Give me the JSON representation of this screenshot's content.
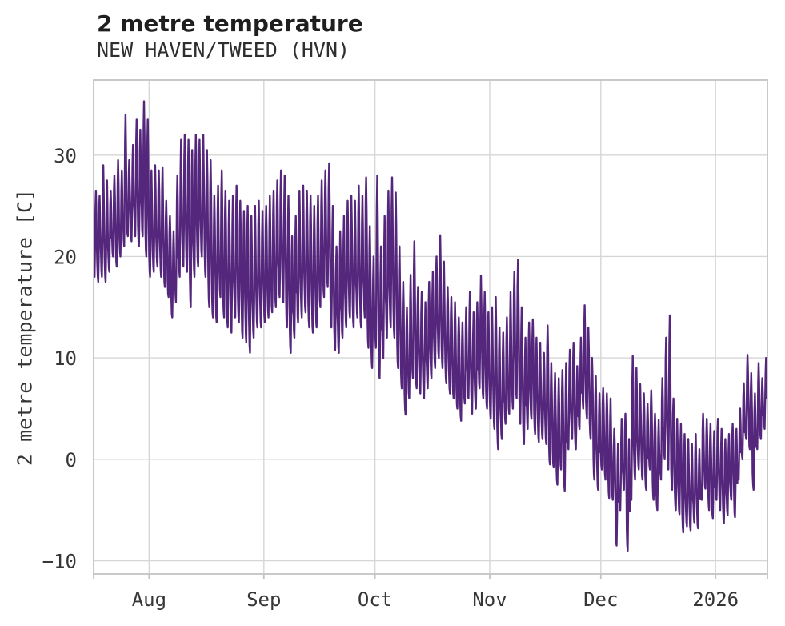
{
  "header": {
    "title": "2 metre temperature",
    "subtitle": "NEW HAVEN/TWEED (HVN)"
  },
  "chart_data": {
    "type": "line",
    "title": "2 metre temperature",
    "subtitle": "NEW HAVEN/TWEED (HVN)",
    "xlabel": "",
    "ylabel": "2 metre temperature [C]",
    "grid": true,
    "legend": "none",
    "line_color": "#54267c",
    "colors": {
      "grid": "#d6d6d6",
      "spine": "#c3c3c3",
      "tick_text": "#363636",
      "title_text": "#1f1f1f"
    },
    "x_start_date": "2025-07-17",
    "xlim_days": [
      0,
      182
    ],
    "ylim": [
      -11.3,
      37.4
    ],
    "x_ticks": [
      {
        "label": "Aug",
        "day": 15
      },
      {
        "label": "Sep",
        "day": 46
      },
      {
        "label": "Oct",
        "day": 76
      },
      {
        "label": "Nov",
        "day": 107
      },
      {
        "label": "Dec",
        "day": 137
      },
      {
        "label": "2026",
        "day": 168
      }
    ],
    "edge_tick_days": [
      0,
      182
    ],
    "y_ticks": [
      {
        "label": "30",
        "value": 30
      },
      {
        "label": "20",
        "value": 20
      },
      {
        "label": "10",
        "value": 10
      },
      {
        "label": "0",
        "value": 0
      },
      {
        "label": "−10",
        "value": -10
      }
    ],
    "sampling_note": "daily min/max envelope of the 2 m temperature trace, read from the plot",
    "daily_min": [
      18,
      17.5,
      18,
      17.5,
      18.5,
      20,
      19,
      20,
      21,
      22,
      21.5,
      22,
      21,
      22,
      20,
      18,
      18.5,
      19,
      18,
      17,
      16,
      14,
      15.5,
      18,
      19,
      18.5,
      15,
      18,
      19,
      20,
      18,
      15,
      14,
      13.5,
      16,
      14,
      13,
      12.5,
      14,
      13.5,
      12,
      11.5,
      10.5,
      12,
      13,
      13,
      13.5,
      14,
      14.5,
      15,
      16,
      15.5,
      13,
      10.5,
      12,
      13.5,
      14,
      14.5,
      13,
      12.5,
      13,
      15,
      16,
      17,
      13,
      10.8,
      10.5,
      12,
      13,
      14,
      13,
      14,
      13,
      14,
      11,
      9,
      11,
      8,
      10,
      12,
      13,
      12,
      9,
      7,
      4.4,
      6,
      8,
      7,
      6.5,
      6,
      7,
      8,
      9,
      10,
      9,
      7.5,
      6.5,
      6,
      5,
      3.8,
      5.5,
      6,
      4.5,
      5,
      7,
      6,
      5,
      4,
      3,
      1,
      2,
      3.5,
      4.5,
      5,
      6,
      3.5,
      1.5,
      3,
      4,
      2.5,
      1.7,
      2,
      1.5,
      -0.5,
      -0.8,
      -2.5,
      -1,
      -3.1,
      1,
      2,
      1,
      3,
      5,
      4,
      2,
      -2,
      -3,
      -1,
      -2,
      -3.8,
      -4,
      -8.5,
      -5,
      -3,
      -9,
      -4,
      -2,
      -1,
      -2,
      -3,
      -1,
      -4,
      -5,
      -2,
      0,
      -1,
      -3,
      -5,
      -5.4,
      -7.2,
      -6.6,
      -7,
      -6.2,
      -6.8,
      -4,
      -2.9,
      -5,
      -5.8,
      -4,
      -5,
      -6.3,
      -5.5,
      -4,
      -5.7,
      -2,
      0,
      2,
      1,
      -3,
      1,
      2,
      3
    ],
    "daily_max": [
      26.5,
      26,
      29,
      27.5,
      26.5,
      28,
      29.5,
      28.5,
      34,
      29.5,
      31,
      33.5,
      32.5,
      35.3,
      33.5,
      28.5,
      29,
      28.5,
      28.8,
      25.5,
      24,
      22.5,
      28,
      31.5,
      32,
      31.5,
      30.5,
      32,
      31.5,
      32,
      30.5,
      29.5,
      26,
      27,
      28.5,
      26.5,
      25.5,
      26,
      27,
      25.5,
      24.5,
      25,
      24,
      25,
      25.5,
      24.5,
      25,
      26,
      26.5,
      27.5,
      28.5,
      28,
      26,
      22,
      24,
      26.5,
      27,
      26.5,
      26,
      25,
      26,
      27.5,
      28.5,
      29.2,
      25,
      21,
      22.5,
      24,
      25.5,
      26,
      25.5,
      27,
      26,
      27.8,
      23,
      20,
      28,
      21,
      24,
      26.5,
      27.8,
      26.3,
      21,
      17.5,
      15,
      18.2,
      21.5,
      17,
      16.5,
      15.5,
      17.5,
      18.5,
      20,
      22.1,
      19.5,
      17,
      16,
      15.5,
      14,
      13.5,
      15,
      16.5,
      14.5,
      15.5,
      18.1,
      16.5,
      14.5,
      15,
      16,
      13,
      12.5,
      14,
      16.5,
      18.5,
      19.7,
      15,
      12,
      13.5,
      13.8,
      12,
      11.5,
      10.5,
      13.2,
      9.5,
      8.5,
      8,
      8.8,
      9.5,
      10.8,
      11.5,
      9.2,
      12,
      15.2,
      13,
      10,
      8.2,
      6.5,
      7,
      6.5,
      6,
      3,
      1.5,
      4,
      4.5,
      2,
      10.2,
      9,
      7.4,
      6.5,
      5.5,
      6.8,
      4.5,
      3.9,
      8,
      12,
      14.2,
      6,
      4,
      3.5,
      2.5,
      2,
      1.5,
      2.5,
      1,
      4.5,
      4,
      3.5,
      2.8,
      4,
      3,
      2,
      2.5,
      3.5,
      3,
      5,
      7.5,
      10.3,
      8.5,
      6.5,
      9.5,
      8,
      10
    ]
  }
}
